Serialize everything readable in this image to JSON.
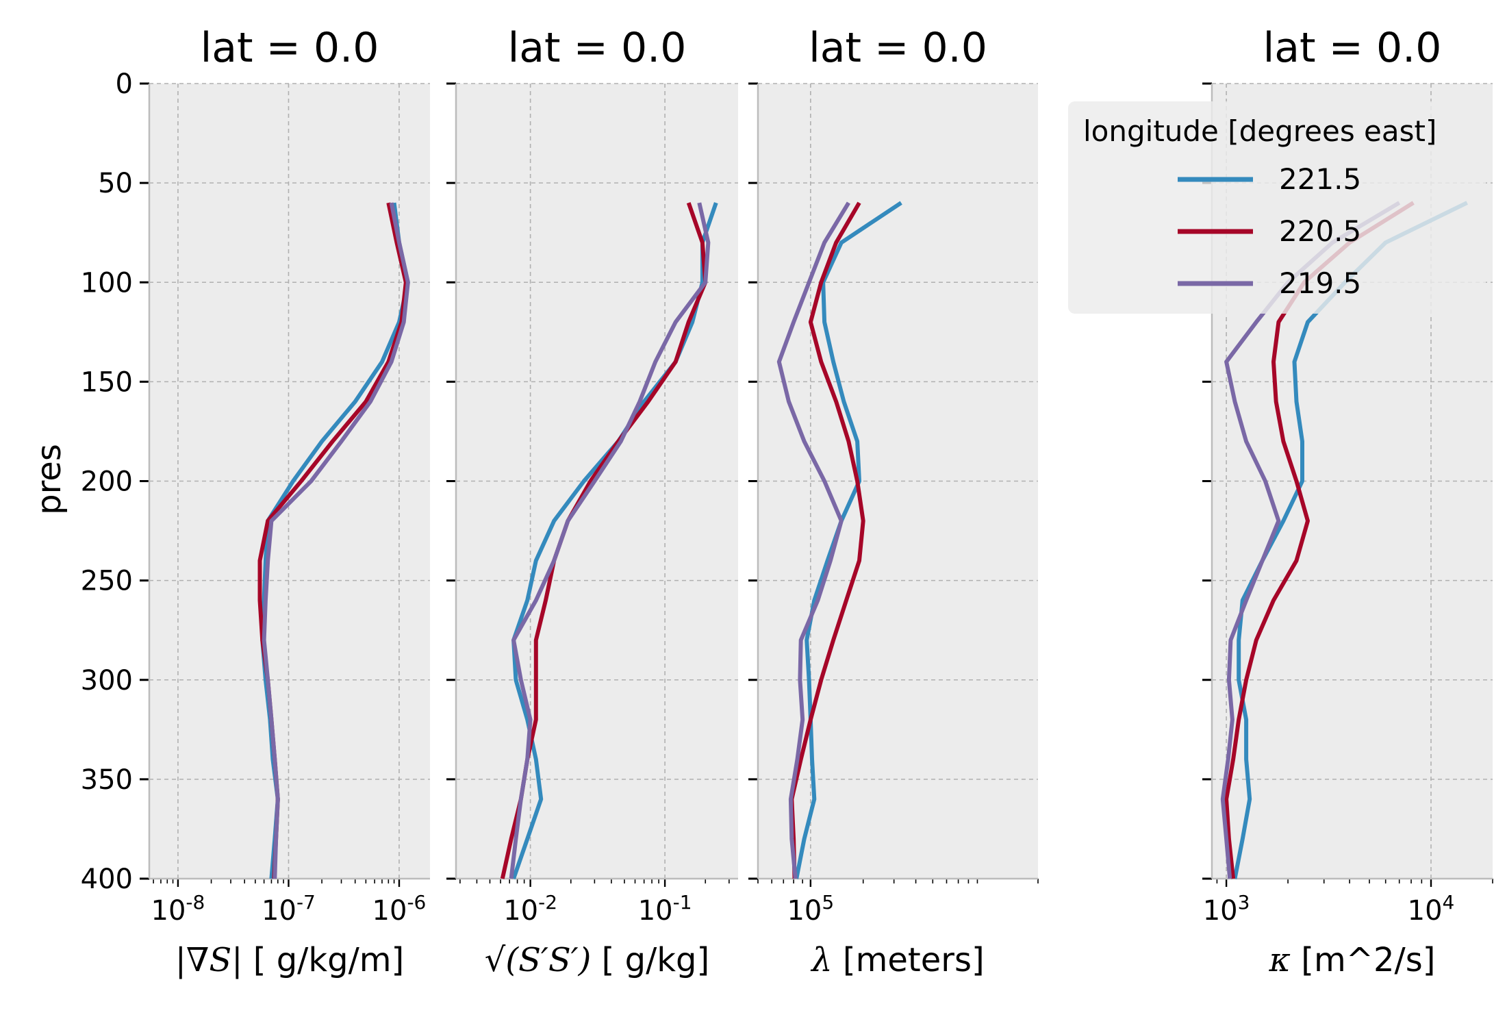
{
  "colors": {
    "background": "#ffffff",
    "panel_bg": "#ececec",
    "grid": "#b0b0b0",
    "spine": "#bcbcbc",
    "series": [
      "#348abd",
      "#a60628",
      "#7a68a6"
    ]
  },
  "chart_data": {
    "type": "line",
    "shared_y": {
      "label": "pres",
      "lim": [
        400,
        0
      ],
      "ticks": [
        0,
        50,
        100,
        150,
        200,
        250,
        300,
        350,
        400
      ],
      "values": [
        60,
        80,
        100,
        120,
        140,
        160,
        180,
        200,
        220,
        240,
        260,
        280,
        300,
        320,
        340,
        360,
        380,
        400
      ]
    },
    "legend": {
      "title": "longitude [degrees east]",
      "placement": "upper-right of the fourth panel",
      "entries": [
        "221.5",
        "220.5",
        "219.5"
      ]
    },
    "panels": [
      {
        "title": "lat = 0.0",
        "xlabel_math": "|∇S|",
        "xlabel_text": " [ g/kg/m]",
        "xscale": "log",
        "xlim": [
          5.5e-09,
          1.9e-06
        ],
        "xticks": [
          {
            "base": "10",
            "exp": "-8"
          },
          {
            "base": "10",
            "exp": "-7"
          },
          {
            "base": "10",
            "exp": "-6"
          }
        ],
        "xtick_values": [
          1e-08,
          1e-07,
          1e-06
        ],
        "series": [
          {
            "name": "221.5",
            "values": [
              9e-07,
              1e-06,
              1.2e-06,
              1e-06,
              7e-07,
              4e-07,
              2e-07,
              1.1e-07,
              6.5e-08,
              6.2e-08,
              6e-08,
              5.8e-08,
              6.2e-08,
              6.8e-08,
              7.2e-08,
              8e-08,
              7.5e-08,
              7e-08
            ]
          },
          {
            "name": "220.5",
            "values": [
              8e-07,
              9.5e-07,
              1.15e-06,
              1.05e-06,
              8e-07,
              5e-07,
              2.5e-07,
              1.3e-07,
              6.5e-08,
              5.5e-08,
              5.5e-08,
              5.8e-08,
              6.5e-08,
              7e-08,
              7.5e-08,
              8e-08,
              7.7e-08,
              7.4e-08
            ]
          },
          {
            "name": "219.5",
            "values": [
              8.5e-07,
              1e-06,
              1.2e-06,
              1.1e-06,
              8.5e-07,
              5.5e-07,
              3e-07,
              1.6e-07,
              7e-08,
              6.5e-08,
              6.2e-08,
              6e-08,
              6.5e-08,
              7e-08,
              7.5e-08,
              8e-08,
              7.7e-08,
              7.5e-08
            ]
          }
        ]
      },
      {
        "title": "lat = 0.0",
        "xlabel_math": "√(S′S′)",
        "xlabel_text": " [ g/kg]",
        "xscale": "log",
        "xlim": [
          0.0028,
          0.35
        ],
        "xticks": [
          {
            "base": "10",
            "exp": "-2"
          },
          {
            "base": "10",
            "exp": "-1"
          }
        ],
        "xtick_values": [
          0.01,
          0.1
        ],
        "series": [
          {
            "name": "221.5",
            "values": [
              0.24,
              0.19,
              0.19,
              0.16,
              0.12,
              0.07,
              0.045,
              0.025,
              0.015,
              0.011,
              0.0095,
              0.0075,
              0.0078,
              0.0095,
              0.011,
              0.012,
              0.0095,
              0.0075
            ]
          },
          {
            "name": "220.5",
            "values": [
              0.15,
              0.19,
              0.2,
              0.15,
              0.12,
              0.075,
              0.045,
              0.028,
              0.019,
              0.015,
              0.013,
              0.011,
              0.011,
              0.011,
              0.0095,
              0.0085,
              0.0072,
              0.0062
            ]
          },
          {
            "name": "219.5",
            "values": [
              0.18,
              0.21,
              0.2,
              0.12,
              0.085,
              0.065,
              0.047,
              0.03,
              0.019,
              0.015,
              0.011,
              0.0075,
              0.0085,
              0.01,
              0.0095,
              0.0085,
              0.0078,
              0.0072
            ]
          }
        ]
      },
      {
        "title": "lat = 0.0",
        "xlabel_math": "λ",
        "xlabel_text": " [meters]",
        "xscale": "log",
        "xlim": [
          50000,
          2000000
        ],
        "xticks": [
          {
            "base": "10",
            "exp": "5"
          }
        ],
        "xtick_values": [
          100000
        ],
        "series": [
          {
            "name": "221.5",
            "values": [
              330000,
              150000,
              118000,
              120000,
              135000,
              155000,
              185000,
              190000,
              150000,
              125000,
              105000,
              95000,
              98000,
              100000,
              102000,
              105000,
              92000,
              83000
            ]
          },
          {
            "name": "220.5",
            "values": [
              190000,
              140000,
              115000,
              100000,
              115000,
              140000,
              165000,
              185000,
              200000,
              190000,
              160000,
              135000,
              115000,
              100000,
              88000,
              78000,
              80000,
              81000
            ]
          },
          {
            "name": "219.5",
            "values": [
              165000,
              120000,
              98000,
              80000,
              66000,
              75000,
              92000,
              120000,
              150000,
              130000,
              110000,
              88000,
              87000,
              90000,
              84000,
              77000,
              78000,
              82000
            ]
          }
        ]
      },
      {
        "title": "lat = 0.0",
        "xlabel_math": "κ",
        "xlabel_text": " [m^2/s]",
        "xscale": "log",
        "xlim": [
          850,
          20000
        ],
        "xticks": [
          {
            "base": "10",
            "exp": "3"
          },
          {
            "base": "10",
            "exp": "4"
          }
        ],
        "xtick_values": [
          1000,
          10000
        ],
        "series": [
          {
            "name": "221.5",
            "values": [
              15000,
              6000,
              3800,
              2500,
              2150,
              2200,
              2350,
              2350,
              1900,
              1500,
              1200,
              1150,
              1150,
              1250,
              1250,
              1300,
              1200,
              1100
            ]
          },
          {
            "name": "220.5",
            "values": [
              8200,
              4000,
              2400,
              1800,
              1700,
              1750,
              1900,
              2200,
              2500,
              2200,
              1700,
              1400,
              1250,
              1150,
              1080,
              1000,
              1030,
              1080
            ]
          },
          {
            "name": "219.5",
            "values": [
              7000,
              3300,
              2000,
              1400,
              1000,
              1100,
              1250,
              1550,
              1800,
              1500,
              1250,
              1050,
              1030,
              1070,
              1020,
              960,
              1000,
              1040
            ]
          }
        ]
      }
    ]
  }
}
